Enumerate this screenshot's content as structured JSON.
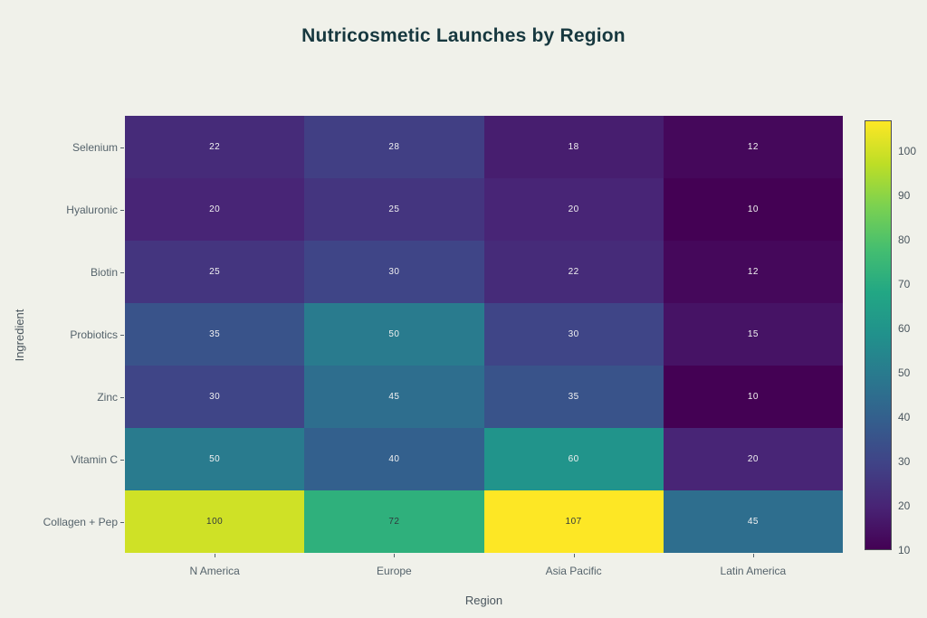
{
  "title": "Nutricosmetic Launches by Region",
  "chart_data": {
    "type": "heatmap",
    "title": "Nutricosmetic Launches by Region",
    "xlabel": "Region",
    "ylabel": "Ingredient",
    "x_categories": [
      "N America",
      "Europe",
      "Asia Pacific",
      "Latin America"
    ],
    "y_categories": [
      "Selenium",
      "Hyaluronic",
      "Biotin",
      "Probiotics",
      "Zinc",
      "Vitamin C",
      "Collagen + Pep"
    ],
    "values": [
      [
        22,
        28,
        18,
        12
      ],
      [
        20,
        25,
        20,
        10
      ],
      [
        25,
        30,
        22,
        12
      ],
      [
        35,
        50,
        30,
        15
      ],
      [
        30,
        45,
        35,
        10
      ],
      [
        50,
        40,
        60,
        20
      ],
      [
        100,
        72,
        107,
        45
      ]
    ],
    "colorscale": "viridis",
    "zmin": 10,
    "zmax": 107,
    "colorbar_ticks": [
      10,
      20,
      30,
      40,
      50,
      60,
      70,
      80,
      90,
      100
    ],
    "legend_position": "right",
    "grid": false
  },
  "colors": {
    "background": "#f0f1ea",
    "title_text": "#17383f",
    "axis_text": "#55636b",
    "cell_text_light": "#f2f2f2",
    "cell_text_dark": "#31393d"
  }
}
